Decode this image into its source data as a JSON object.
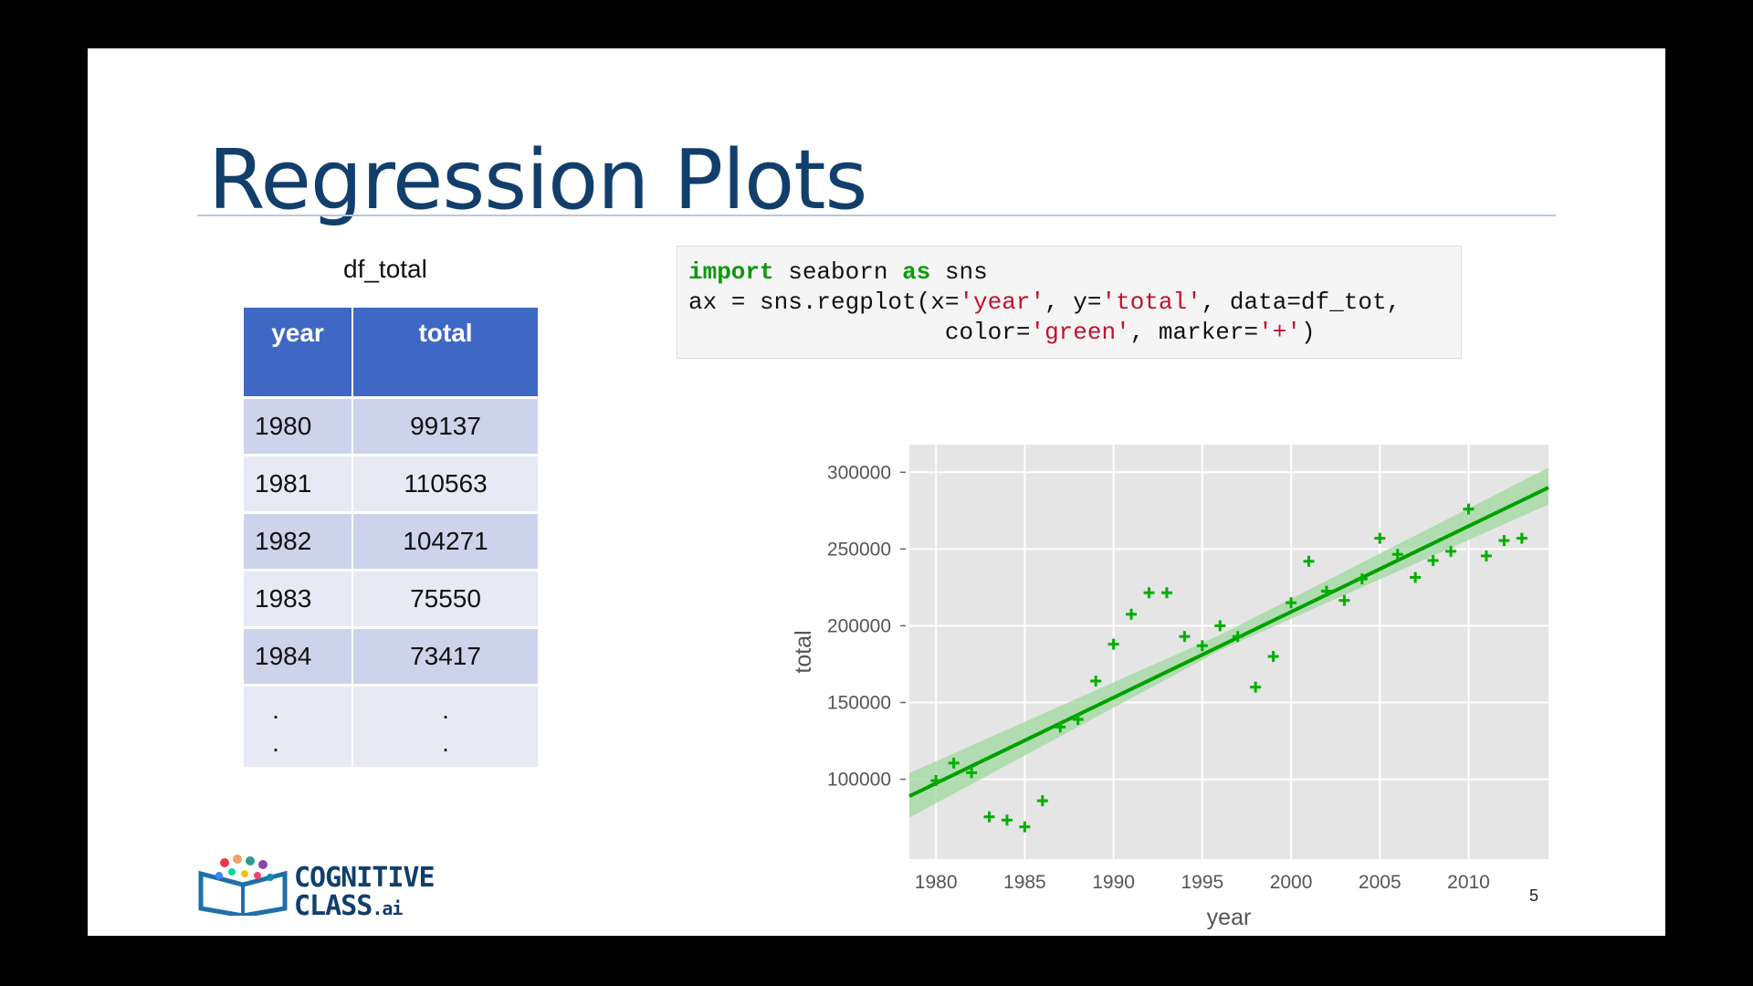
{
  "slide": {
    "title": "Regression Plots",
    "page_number": "5"
  },
  "table": {
    "caption": "df_total",
    "headers": [
      "year",
      "total"
    ],
    "rows": [
      [
        "1980",
        "99137"
      ],
      [
        "1981",
        "110563"
      ],
      [
        "1982",
        "104271"
      ],
      [
        "1983",
        "75550"
      ],
      [
        "1984",
        "73417"
      ]
    ],
    "ellipsis": [
      ".",
      "."
    ]
  },
  "code": {
    "line1": [
      "import",
      " seaborn ",
      "as",
      " sns"
    ],
    "line2": [
      "ax = sns.regplot(x=",
      "'year'",
      ", y=",
      "'total'",
      ", data=df_tot,"
    ],
    "line3": [
      "                  color=",
      "'green'",
      ", marker=",
      "'+'",
      ")"
    ]
  },
  "logo": {
    "line1": "COGNITIVE",
    "line2": "CLASS",
    "suffix": ".ai"
  },
  "colors": {
    "title": "#123e6b",
    "header": "#3f67c4",
    "points": "#00b000",
    "line": "#00a000",
    "ci_band": "#9fd89f",
    "plot_bg": "#e5e5e5"
  },
  "chart_data": {
    "type": "scatter",
    "xlabel": "year",
    "ylabel": "total",
    "xlim": [
      1978.5,
      2014.5
    ],
    "ylim": [
      48000,
      318000
    ],
    "xticks": [
      1980,
      1985,
      1990,
      1995,
      2000,
      2005,
      2010
    ],
    "yticks": [
      100000,
      150000,
      200000,
      250000,
      300000
    ],
    "marker": "+",
    "grid": true,
    "points": [
      [
        1980,
        99137
      ],
      [
        1981,
        110563
      ],
      [
        1982,
        104271
      ],
      [
        1983,
        75550
      ],
      [
        1984,
        73417
      ],
      [
        1985,
        69000
      ],
      [
        1986,
        86000
      ],
      [
        1987,
        134000
      ],
      [
        1988,
        139000
      ],
      [
        1989,
        164000
      ],
      [
        1990,
        188000
      ],
      [
        1991,
        207500
      ],
      [
        1992,
        221500
      ],
      [
        1993,
        221500
      ],
      [
        1994,
        193000
      ],
      [
        1995,
        187000
      ],
      [
        1996,
        200000
      ],
      [
        1997,
        193000
      ],
      [
        1998,
        160000
      ],
      [
        1999,
        180000
      ],
      [
        2000,
        215000
      ],
      [
        2001,
        242000
      ],
      [
        2002,
        222500
      ],
      [
        2003,
        216500
      ],
      [
        2004,
        230500
      ],
      [
        2005,
        257000
      ],
      [
        2006,
        246500
      ],
      [
        2007,
        231500
      ],
      [
        2008,
        242500
      ],
      [
        2009,
        248500
      ],
      [
        2010,
        276000
      ],
      [
        2011,
        245500
      ],
      [
        2012,
        255500
      ],
      [
        2013,
        257000
      ]
    ],
    "regression_line": {
      "x": [
        1978.5,
        2014.5
      ],
      "y": [
        89000,
        290000
      ]
    },
    "confidence_band": {
      "x": [
        1978.5,
        1996,
        2014.5
      ],
      "upper": [
        104000,
        194000,
        303000
      ],
      "lower": [
        75000,
        184000,
        279000
      ]
    }
  }
}
